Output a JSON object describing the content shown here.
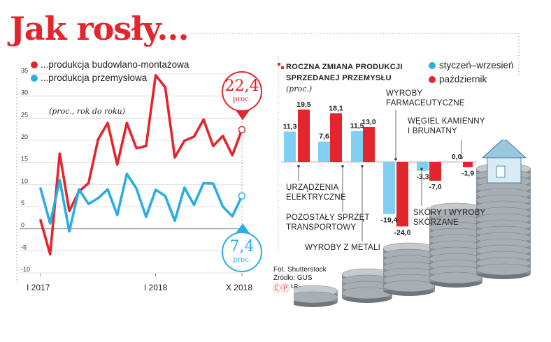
{
  "title": "Jak rosły...",
  "left_legend": {
    "construction": "...produkcja budowlano-montażowa",
    "industrial": "...produkcja przemysłowa",
    "unit_note": "(proc., rok do roku)"
  },
  "callouts": {
    "construction_value": "22,4",
    "industrial_value": "7,4",
    "unit": "proc."
  },
  "colors": {
    "red": "#e3252d",
    "blue": "#29aee4",
    "lightblue": "#7fd0f3"
  },
  "right_header": {
    "title": "Roczna zmiana produkcji sprzedanej przemysłu",
    "unit": "(proc.)",
    "legend_a": "styczeń–wrzesień",
    "legend_b": "październik"
  },
  "credits": {
    "photo": "Fot. Shutterstock",
    "source": "Źródło: GUS",
    "mark": "ⒸⓅ",
    "initials": "ŁR"
  },
  "category_labels": [
    "URZĄDZENIA\nELEKTRYCZNE",
    "POZOSTAŁY SPRZĘT\nTRANSPORTOWY",
    "WYROBY Z METALI",
    "WYROBY\nFARMACEUTYCZNE",
    "SKÓRY I WYROBY\nSKÓRZANE",
    "WĘGIEL KAMIENNY\nI BRUNATNY"
  ],
  "chart_data": [
    {
      "type": "line",
      "ylim": [
        -10,
        35
      ],
      "y_ticks": [
        "-10",
        "-5",
        "0",
        "5",
        "10",
        "15",
        "20",
        "25",
        "30",
        "35"
      ],
      "x_tick_labels": [
        "I 2017",
        "I 2018",
        "X 2018"
      ],
      "grid": true,
      "x": [
        "I 2017",
        "II 2017",
        "III 2017",
        "IV 2017",
        "V 2017",
        "VI 2017",
        "VII 2017",
        "VIII 2017",
        "IX 2017",
        "X 2017",
        "XI 2017",
        "XII 2017",
        "I 2018",
        "II 2018",
        "III 2018",
        "IV 2018",
        "V 2018",
        "VI 2018",
        "VII 2018",
        "VIII 2018",
        "IX 2018",
        "X 2018"
      ],
      "series": [
        {
          "name": "...produkcja budowlano-montażowa",
          "color": "#e3252d",
          "values": [
            1.9,
            -5.8,
            17.0,
            4.0,
            8.4,
            10.3,
            20.2,
            23.9,
            14.5,
            23.9,
            18.2,
            18.7,
            34.7,
            32.0,
            16.1,
            19.9,
            20.8,
            24.7,
            18.7,
            21.0,
            16.6,
            22.4
          ]
        },
        {
          "name": "...produkcja przemysłowa",
          "color": "#29aee4",
          "values": [
            9.1,
            1.2,
            11.0,
            -0.6,
            8.9,
            5.6,
            6.9,
            8.9,
            3.1,
            12.4,
            9.1,
            2.7,
            8.8,
            7.4,
            1.8,
            9.3,
            5.4,
            10.3,
            10.2,
            5.0,
            2.8,
            7.4
          ]
        }
      ]
    },
    {
      "type": "bar",
      "title": "Roczna zmiana produkcji sprzedanej przemysłu",
      "ylabel": "(proc.)",
      "categories": [
        "URZĄDZENIA ELEKTRYCZNE",
        "POZOSTAŁY SPRZĘT TRANSPORTOWY",
        "WYROBY Z METALI",
        "WYROBY FARMACEUTYCZNE",
        "SKÓRY I WYROBY SKÓRZANE",
        "WĘGIEL KAMIENNY I BRUNATNY"
      ],
      "series": [
        {
          "name": "styczeń–wrzesień",
          "color": "#7fd0f3",
          "values": [
            11.3,
            7.6,
            11.5,
            -19.4,
            -3.3,
            0.0
          ]
        },
        {
          "name": "październik",
          "color": "#e3252d",
          "values": [
            19.5,
            18.1,
            13.0,
            -24.0,
            -7.0,
            -1.9
          ]
        }
      ],
      "value_labels_a": [
        "11,3",
        "7,6",
        "11,5",
        "-19,4",
        "-3,3",
        "0,0"
      ],
      "value_labels_b": [
        "19,5",
        "18,1",
        "13,0",
        "-24,0",
        "-7,0",
        "-1,9"
      ]
    }
  ]
}
